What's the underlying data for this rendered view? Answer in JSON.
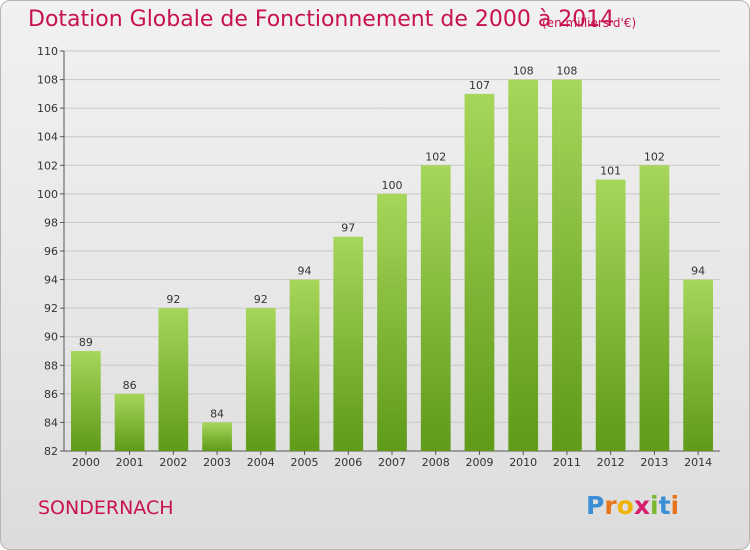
{
  "header": {
    "title": "Dotation Globale de Fonctionnement de 2000 à 2014",
    "unit": "(en milliers d'€)"
  },
  "footer": {
    "commune": "SONDERNACH",
    "logo_text": "Proxiti"
  },
  "colors": {
    "title": "#c8124e",
    "bar_top": "#a6d65a",
    "bar_bottom": "#5f9a18",
    "grid": "#c8c8c8",
    "axis": "#555555"
  },
  "chart_data": {
    "type": "bar",
    "title": "Dotation Globale de Fonctionnement de 2000 à 2014",
    "subtitle": "(en milliers d'€)",
    "xlabel": "",
    "ylabel": "",
    "categories": [
      "2000",
      "2001",
      "2002",
      "2003",
      "2004",
      "2005",
      "2006",
      "2007",
      "2008",
      "2009",
      "2010",
      "2011",
      "2012",
      "2013",
      "2014"
    ],
    "values": [
      89,
      86,
      92,
      84,
      92,
      94,
      97,
      100,
      102,
      107,
      108,
      108,
      101,
      102,
      94
    ],
    "ylim": [
      82,
      110
    ],
    "yticks": [
      82,
      84,
      86,
      88,
      90,
      92,
      94,
      96,
      98,
      100,
      102,
      104,
      106,
      108,
      110
    ],
    "grid": true,
    "legend": "none"
  }
}
